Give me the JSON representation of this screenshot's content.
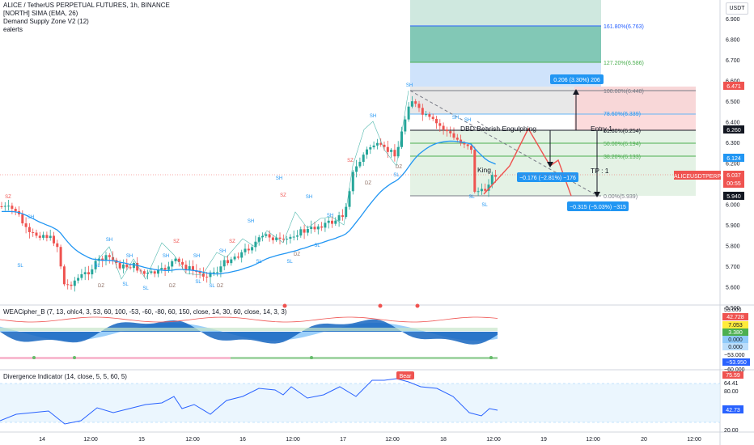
{
  "legend": {
    "symbol": "ALICE / TetherUS PERPETUAL FUTURES, 1h, BINANCE",
    "indicator1": "[NORTH] SIMA (EMA, 26)",
    "indicator2": "Demand Supply Zone V2 (12)",
    "indicator3": "ealerts"
  },
  "currency": "USDT",
  "price_axis": [
    "6.900",
    "6.800",
    "6.700",
    "6.600",
    "6.500",
    "6.400",
    "6.300",
    "6.200",
    "6.100",
    "6.000",
    "5.900",
    "5.800",
    "5.700",
    "5.600",
    "5.500"
  ],
  "price_tags": {
    "p6471": "6.471",
    "p6260": "6.260",
    "p6124": "6.124",
    "p6037": "6.037",
    "countdown": "00:55",
    "p5940": "5.940",
    "symbol_tag": "ALICEUSDTPERP"
  },
  "fib": {
    "f1618": "161.80%(6.763)",
    "f1272": "127.20%(6.586)",
    "f1000": "100.00%(6.448)",
    "f786": "78.60%(6.339)",
    "f618": "61.80%(6.254)",
    "f500": "50.00%(6.194)",
    "f382": "38.20%(6.133)",
    "f000": "0.00%(5.939)"
  },
  "annotations": {
    "measure_up": "0.206 (3.30%) 206",
    "measure_mid": "−0.176 (−2.81%) −176",
    "measure_low": "−0.315 (−5.03%) −315",
    "pattern": "DBD Bearish Engulphing",
    "entry": "Entry 1",
    "tp": "TP : 1",
    "king": "King"
  },
  "marks": {
    "sh": "SH",
    "sl": "SL",
    "sz": "SZ",
    "dz": "DZ"
  },
  "wea": {
    "label": "WEACipher_B (7, 13, ohlc4, 3, 53, 60, 100, -53, -60, -80, 60, 150, close, 14, 30, 60, close, 14, 3, 3)",
    "axis_53": "53.000",
    "tag1": "42.728",
    "tag2": "7.053",
    "tag3": "3.380",
    "tag4": "0.000",
    "tag5": "0.000",
    "axis_n53": "−53.000",
    "tag6": "−53.950",
    "axis_n60": "−60.000"
  },
  "div": {
    "label": "Divergence Indicator (14, close, 5, 5, 60, 5)",
    "bear": "Bear",
    "tag_7559": "75.59",
    "axis_6441": "64.41",
    "axis_8000": "80.00",
    "tag_4273": "42.73",
    "axis_2000": "20.00"
  },
  "time_axis": [
    {
      "label": "14"
    },
    {
      "label": "12:00"
    },
    {
      "label": "15"
    },
    {
      "label": "12:00"
    },
    {
      "label": "16"
    },
    {
      "label": "12:00"
    },
    {
      "label": "17"
    },
    {
      "label": "12:00"
    },
    {
      "label": "18"
    },
    {
      "label": "12:00"
    },
    {
      "label": "19"
    },
    {
      "label": "12:00"
    },
    {
      "label": "20"
    },
    {
      "label": "12:00"
    }
  ],
  "colors": {
    "up": "#26a69a",
    "down": "#ef5350",
    "ema": "#2196f3",
    "fib_green": "#4caf50",
    "fib_blue": "#2962ff"
  }
}
